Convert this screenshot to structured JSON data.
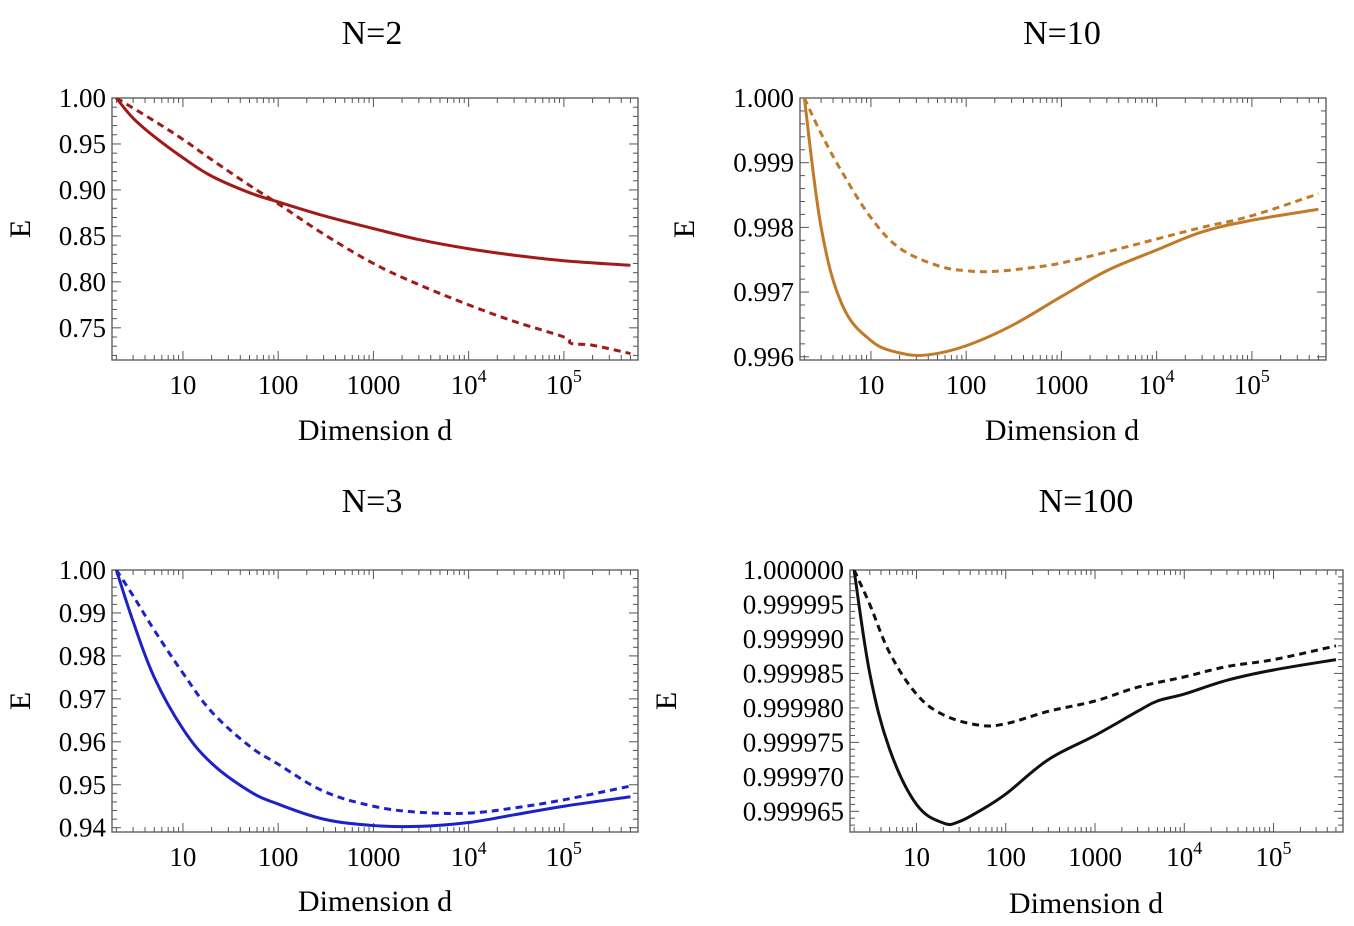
{
  "figure_title": "",
  "chart_data": [
    {
      "id": "p1",
      "type": "line",
      "title": "N=2",
      "xlabel": "Dimension d",
      "ylabel": "E",
      "xscale": "log",
      "xlim": [
        1.8,
        600000
      ],
      "ylim": [
        0.715,
        1.0
      ],
      "xticks": [
        {
          "value": 10,
          "label": "10"
        },
        {
          "value": 100,
          "label": "100"
        },
        {
          "value": 1000,
          "label": "1000"
        },
        {
          "value": 10000,
          "base": "10",
          "exp": "4"
        },
        {
          "value": 100000,
          "base": "10",
          "exp": "5"
        }
      ],
      "yticks": [
        {
          "value": 1.0,
          "label": "1.00"
        },
        {
          "value": 0.95,
          "label": "0.95"
        },
        {
          "value": 0.9,
          "label": "0.90"
        },
        {
          "value": 0.85,
          "label": "0.85"
        },
        {
          "value": 0.8,
          "label": "0.80"
        },
        {
          "value": 0.75,
          "label": "0.75"
        }
      ],
      "color": "#a01b17",
      "series": [
        {
          "name": "solid",
          "style": "solid",
          "x": [
            2,
            3,
            5,
            10,
            20,
            50,
            100,
            300,
            1000,
            3000,
            10000,
            30000,
            100000,
            500000
          ],
          "y": [
            1.0,
            0.978,
            0.958,
            0.935,
            0.915,
            0.897,
            0.887,
            0.872,
            0.858,
            0.846,
            0.836,
            0.829,
            0.823,
            0.818
          ]
        },
        {
          "name": "dashed",
          "style": "dashed",
          "x": [
            2,
            5,
            10,
            20,
            50,
            100,
            300,
            1000,
            3000,
            10000,
            30000,
            100000,
            120000,
            200000,
            500000
          ],
          "y": [
            1.0,
            0.975,
            0.955,
            0.933,
            0.905,
            0.885,
            0.852,
            0.82,
            0.797,
            0.775,
            0.757,
            0.74,
            0.733,
            0.731,
            0.722
          ]
        }
      ]
    },
    {
      "id": "p2",
      "type": "line",
      "title": "N=10",
      "xlabel": "Dimension d",
      "ylabel": "E",
      "xscale": "log",
      "xlim": [
        1.8,
        600000
      ],
      "ylim": [
        0.99595,
        1.0
      ],
      "xticks": [
        {
          "value": 10,
          "label": "10"
        },
        {
          "value": 100,
          "label": "100"
        },
        {
          "value": 1000,
          "label": "1000"
        },
        {
          "value": 10000,
          "base": "10",
          "exp": "4"
        },
        {
          "value": 100000,
          "base": "10",
          "exp": "5"
        }
      ],
      "yticks": [
        {
          "value": 1.0,
          "label": "1.000"
        },
        {
          "value": 0.999,
          "label": "0.999"
        },
        {
          "value": 0.998,
          "label": "0.998"
        },
        {
          "value": 0.997,
          "label": "0.997"
        },
        {
          "value": 0.996,
          "label": "0.996"
        }
      ],
      "color": "#c07a2a",
      "series": [
        {
          "name": "solid",
          "style": "solid",
          "x": [
            2,
            3,
            5,
            10,
            20,
            40,
            100,
            300,
            1000,
            3000,
            10000,
            30000,
            100000,
            500000
          ],
          "y": [
            1.0,
            0.998,
            0.9968,
            0.99625,
            0.99606,
            0.99603,
            0.99617,
            0.99648,
            0.99693,
            0.99733,
            0.99765,
            0.99793,
            0.99811,
            0.99828
          ]
        },
        {
          "name": "dashed",
          "style": "dashed",
          "x": [
            2,
            3,
            5,
            10,
            20,
            50,
            100,
            200,
            500,
            1000,
            3000,
            10000,
            30000,
            100000,
            500000
          ],
          "y": [
            1.0,
            0.99945,
            0.99885,
            0.99815,
            0.99768,
            0.99741,
            0.99733,
            0.99732,
            0.99738,
            0.99745,
            0.99762,
            0.99782,
            0.998,
            0.99818,
            0.99852
          ]
        }
      ]
    },
    {
      "id": "p3",
      "type": "line",
      "title": "N=3",
      "xlabel": "Dimension d",
      "ylabel": "E",
      "xscale": "log",
      "xlim": [
        1.8,
        600000
      ],
      "ylim": [
        0.939,
        1.0
      ],
      "xticks": [
        {
          "value": 10,
          "label": "10"
        },
        {
          "value": 100,
          "label": "100"
        },
        {
          "value": 1000,
          "label": "1000"
        },
        {
          "value": 10000,
          "base": "10",
          "exp": "4"
        },
        {
          "value": 100000,
          "base": "10",
          "exp": "5"
        }
      ],
      "yticks": [
        {
          "value": 1.0,
          "label": "1.00"
        },
        {
          "value": 0.99,
          "label": "0.99"
        },
        {
          "value": 0.98,
          "label": "0.98"
        },
        {
          "value": 0.97,
          "label": "0.97"
        },
        {
          "value": 0.96,
          "label": "0.96"
        },
        {
          "value": 0.95,
          "label": "0.95"
        },
        {
          "value": 0.94,
          "label": "0.94"
        }
      ],
      "color": "#1c22c8",
      "series": [
        {
          "name": "solid",
          "style": "solid",
          "x": [
            2,
            3,
            5,
            10,
            20,
            50,
            100,
            300,
            1000,
            3000,
            10000,
            30000,
            100000,
            500000
          ],
          "y": [
            1.0,
            0.988,
            0.975,
            0.963,
            0.955,
            0.9485,
            0.9455,
            0.942,
            0.9405,
            0.9403,
            0.9412,
            0.943,
            0.945,
            0.9472
          ]
        },
        {
          "name": "dashed",
          "style": "dashed",
          "x": [
            2,
            3,
            5,
            10,
            20,
            50,
            100,
            300,
            1000,
            3000,
            10000,
            30000,
            100000,
            500000
          ],
          "y": [
            1.0,
            0.994,
            0.986,
            0.976,
            0.967,
            0.959,
            0.9548,
            0.9485,
            0.945,
            0.9436,
            0.9434,
            0.9446,
            0.9465,
            0.9497
          ]
        }
      ]
    },
    {
      "id": "p4",
      "type": "line",
      "title": "N=100",
      "xlabel": "Dimension d",
      "ylabel": "E",
      "xscale": "log",
      "xlim": [
        1.8,
        600000
      ],
      "ylim": [
        0.999962,
        1.0
      ],
      "xticks": [
        {
          "value": 10,
          "label": "10"
        },
        {
          "value": 100,
          "label": "100"
        },
        {
          "value": 1000,
          "label": "1000"
        },
        {
          "value": 10000,
          "base": "10",
          "exp": "4"
        },
        {
          "value": 100000,
          "base": "10",
          "exp": "5"
        }
      ],
      "yticks": [
        {
          "value": 1.0,
          "label": "1.000000"
        },
        {
          "value": 0.999995,
          "label": "0.999995"
        },
        {
          "value": 0.99999,
          "label": "0.999990"
        },
        {
          "value": 0.999985,
          "label": "0.999985"
        },
        {
          "value": 0.99998,
          "label": "0.999980"
        },
        {
          "value": 0.999975,
          "label": "0.999975"
        },
        {
          "value": 0.99997,
          "label": "0.999970"
        },
        {
          "value": 0.999965,
          "label": "0.999965"
        }
      ],
      "color": "#111111",
      "series": [
        {
          "name": "solid",
          "style": "solid",
          "x": [
            2,
            3,
            5,
            10,
            20,
            30,
            50,
            100,
            300,
            1000,
            3000,
            5000,
            10000,
            30000,
            100000,
            500000
          ],
          "y": [
            1.0,
            0.999985,
            0.999974,
            0.999966,
            0.9999633,
            0.9999635,
            0.999965,
            0.9999675,
            0.9999725,
            0.999976,
            0.9999795,
            0.999981,
            0.999982,
            0.999984,
            0.9999855,
            0.999987
          ]
        },
        {
          "name": "dashed",
          "style": "dashed",
          "x": [
            2,
            3,
            5,
            10,
            20,
            50,
            100,
            300,
            1000,
            3000,
            10000,
            30000,
            100000,
            500000
          ],
          "y": [
            1.0,
            0.999995,
            0.999988,
            0.999982,
            0.999979,
            0.9999775,
            0.9999777,
            0.9999795,
            0.999981,
            0.999983,
            0.9999845,
            0.999986,
            0.999987,
            0.999989
          ]
        }
      ]
    }
  ]
}
